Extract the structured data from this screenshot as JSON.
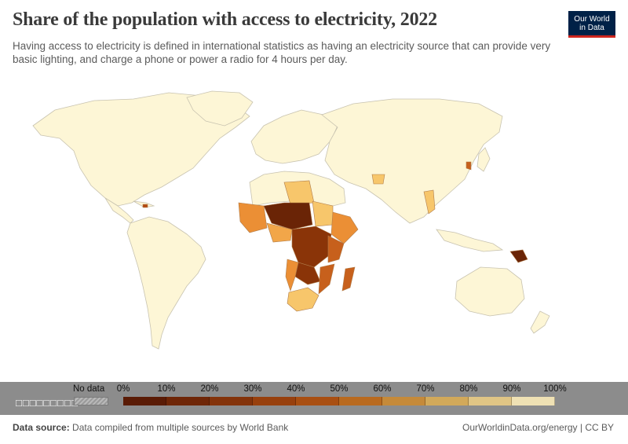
{
  "header": {
    "title": "Share of the population with access to electricity, 2022",
    "subtitle": "Having access to electricity is defined in international statistics as having an electricity source that can provide very basic lighting, and charge a phone or power a radio for 4 hours per day.",
    "logo_line1": "Our World",
    "logo_line2": "in Data"
  },
  "legend": {
    "no_data_label": "No data",
    "boxes_text": "□□□□□□□□□",
    "bins": [
      "0%",
      "10%",
      "20%",
      "30%",
      "40%",
      "50%",
      "60%",
      "70%",
      "80%",
      "90%",
      "100%"
    ],
    "colors": [
      "#5a1b05",
      "#6f2607",
      "#84330a",
      "#98400d",
      "#a94f12",
      "#b96a1f",
      "#c58a3a",
      "#d2a95a",
      "#e0c585",
      "#efe1b4"
    ]
  },
  "footer": {
    "source_label": "Data source:",
    "source_text": "Data compiled from multiple sources by World Bank",
    "right_text": "OurWorldinData.org/energy | CC BY"
  },
  "map_colors": {
    "land_full": "#fdf6d6",
    "border": "#c8c3b0",
    "high": "#f7c66b",
    "mid": "#eb8f35",
    "low": "#c7601c",
    "lowest": "#8a3408",
    "very_low": "#6a2406"
  }
}
